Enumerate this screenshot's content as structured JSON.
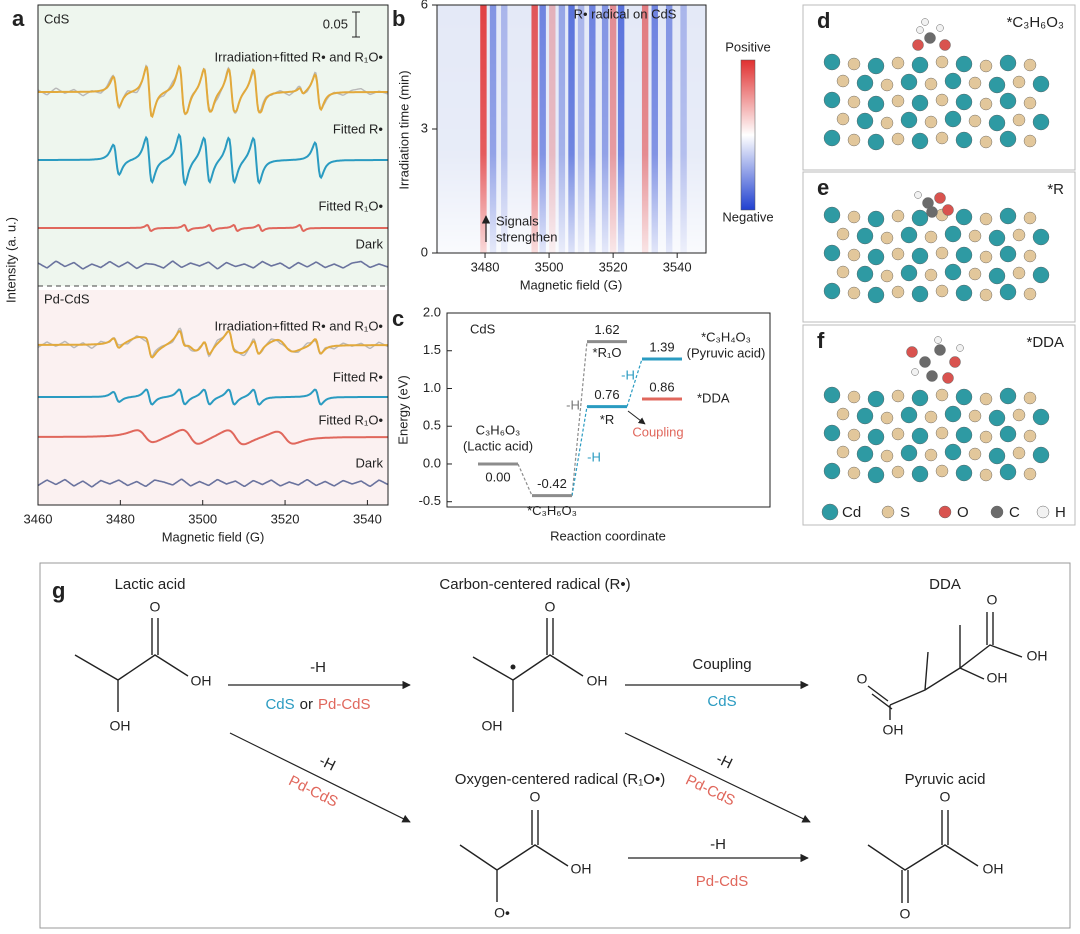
{
  "panel_a": {
    "label": "a",
    "ylabel": "Intensity (a. u.)",
    "xlabel": "Magnetic field (G)",
    "xlim": [
      3460,
      3545
    ],
    "xticks": [
      3460,
      3480,
      3500,
      3520,
      3540
    ],
    "scale_bar": 0.05,
    "colors": {
      "fit": "#e2a93b",
      "experiment": "#b8b8b8",
      "R": "#2a9bc1",
      "R1O": "#e0675c",
      "dark": "#6a739e"
    },
    "groups": [
      {
        "name": "CdS",
        "background": "#eef6ee",
        "trace_labels": [
          "Irradiation+fitted R• and R₁O•",
          "Fitted R•",
          "Fitted R₁O•",
          "Dark"
        ],
        "R": {
          "centers": [
            3479,
            3487,
            3495,
            3501,
            3507,
            3513,
            3528
          ],
          "amplitudes": [
            0.06,
            0.09,
            0.1,
            0.09,
            0.09,
            0.09,
            0.07
          ],
          "width": 1.2
        },
        "R1O": {
          "centers": [
            3487,
            3496,
            3502,
            3508,
            3514,
            3524
          ],
          "amplitudes": [
            0.012,
            0.012,
            0.012,
            0.012,
            0.012,
            0.012
          ],
          "width": 0.8
        },
        "noise": [
          0.004,
          -0.006,
          0.008,
          -0.003,
          0.005,
          -0.008,
          0.002,
          -0.005,
          0.007,
          -0.004,
          0.006,
          -0.007,
          0.003,
          0.001,
          -0.006,
          0.008,
          -0.005,
          0.004,
          -0.002,
          0.006,
          -0.008,
          0.005,
          -0.003,
          0.002,
          -0.006,
          0.007,
          -0.002,
          0.004,
          -0.007,
          0.005,
          -0.004,
          0.006,
          -0.005,
          0.002,
          -0.006,
          0.004,
          0.007,
          -0.005,
          0.002,
          -0.004
        ]
      },
      {
        "name": "Pd-CdS",
        "background": "#fbf1f1",
        "trace_labels": [
          "Irradiation+fitted R• and R₁O•",
          "Fitted R•",
          "Fitted R₁O•",
          "Dark"
        ],
        "R": {
          "centers": [
            3479,
            3487,
            3495,
            3501,
            3507,
            3513,
            3528
          ],
          "amplitudes": [
            0.02,
            0.03,
            0.03,
            0.03,
            0.03,
            0.03,
            0.03
          ],
          "width": 1.2
        },
        "R1O": {
          "centers": [
            3486,
            3497,
            3508,
            3520
          ],
          "amplitudes": [
            0.025,
            0.03,
            0.03,
            0.025
          ],
          "width": 3.5
        },
        "noise": [
          -0.005,
          0.006,
          -0.003,
          0.007,
          -0.006,
          0.004,
          -0.008,
          0.005,
          -0.002,
          0.006,
          -0.005,
          0.003,
          -0.007,
          0.006,
          0.002,
          -0.004,
          0.008,
          -0.006,
          0.003,
          -0.005,
          0.007,
          -0.002,
          0.004,
          -0.007,
          0.005,
          -0.003,
          0.006,
          -0.006,
          0.002,
          -0.004,
          0.007,
          -0.005,
          0.003,
          -0.006,
          0.005,
          -0.002,
          0.004,
          -0.007,
          0.006,
          -0.003
        ]
      }
    ]
  },
  "panel_b": {
    "label": "b",
    "title": "R• radical on CdS",
    "xlabel": "Magnetic field (G)",
    "ylabel": "Irradiation time (min)",
    "xlim": [
      3465,
      3549
    ],
    "xticks": [
      3480,
      3500,
      3520,
      3540
    ],
    "ylim": [
      0,
      6
    ],
    "yticks": [
      0,
      3,
      6
    ],
    "colorbar": [
      "Positive",
      "Negative"
    ],
    "annotation": [
      "Signals",
      "strengthen"
    ],
    "colors": {
      "positive": "#e03030",
      "negative": "#2040d0",
      "background": "#e4e9f7"
    },
    "stripes": {
      "x": [
        3479.5,
        3482.5,
        3486,
        3495.5,
        3498,
        3501,
        3504,
        3507,
        3510,
        3513.5,
        3517.5,
        3520,
        3522.5,
        3530,
        3533,
        3537.5,
        3542
      ],
      "values": [
        0.9,
        -0.5,
        -0.3,
        0.8,
        -0.6,
        0.3,
        -0.4,
        -0.7,
        -0.3,
        -0.6,
        -0.5,
        0.5,
        -0.7,
        0.6,
        -0.6,
        -0.5,
        -0.3
      ]
    }
  },
  "panel_c": {
    "label": "c",
    "system": "CdS",
    "ylabel": "Energy (eV)",
    "xlabel": "Reaction coordinate",
    "ylim": [
      -0.57,
      2.0
    ],
    "yticks": [
      -0.5,
      {
        "value": 0,
        "label": "0.0"
      },
      0.5,
      {
        "value": 1,
        "label": "1.0"
      },
      1.5,
      {
        "value": 2,
        "label": "2.0"
      }
    ],
    "states": [
      [
        "C₃H₆O₃",
        "(Lactic acid)"
      ],
      [
        "*C₃H₆O₃"
      ],
      [
        "*R₁O"
      ],
      [
        "*R"
      ],
      [
        "*C₃H₄O₃",
        "(Pyruvic acid)"
      ],
      [
        "*DDA"
      ]
    ],
    "values": [
      0,
      -0.42,
      1.62,
      0.76,
      1.39,
      0.86
    ],
    "value_labels": [
      "0.00",
      "-0.42",
      "1.62",
      "0.76",
      "1.39",
      "0.86"
    ],
    "colors": [
      "#8c8c8c",
      "#8c8c8c",
      "#8c8c8c",
      "#2a9bc1",
      "#2a9bc1",
      "#e0675c"
    ],
    "steps": [
      {
        "label": "-H",
        "color": "#777777"
      },
      {
        "label": "-H",
        "color": "#2a9bc1"
      },
      {
        "label": "-H",
        "color": "#2a9bc1"
      },
      {
        "label": "Coupling",
        "color": "#e0675c"
      }
    ]
  },
  "panels_def": {
    "labels": [
      "d",
      "e",
      "f"
    ],
    "adsorbates": [
      "*C₃H₆O₃",
      "*R",
      "*DDA"
    ],
    "legend": [
      {
        "name": "Cd",
        "color": "#2e9aa3"
      },
      {
        "name": "S",
        "color": "#e2c79b"
      },
      {
        "name": "O",
        "color": "#d9534f"
      },
      {
        "name": "C",
        "color": "#6b6b6b"
      },
      {
        "name": "H",
        "color": "#f2f2f2"
      }
    ]
  },
  "scheme": {
    "label": "g",
    "molecules": [
      {
        "name": "Lactic acid",
        "atoms": [
          "O",
          "OH",
          "OH"
        ]
      },
      {
        "name": "Carbon-centered radical (R•)",
        "atoms": [
          "O",
          "OH",
          "OH"
        ]
      },
      {
        "name": "DDA",
        "atoms": [
          "O",
          "OH",
          "OH",
          "O",
          "OH"
        ]
      },
      {
        "name": "Oxygen-centered radical (R₁O•)",
        "atoms": [
          "O",
          "OH",
          "O•"
        ]
      },
      {
        "name": "Pyruvic acid",
        "atoms": [
          "O",
          "OH",
          "O"
        ]
      }
    ],
    "arrows": [
      {
        "above": "-H",
        "below": [
          {
            "text": "CdS",
            "color": "#2a9bc1"
          },
          {
            "text": "or",
            "color": "#222222"
          },
          {
            "text": "Pd-CdS",
            "color": "#e0675c"
          }
        ]
      },
      {
        "above": "Coupling",
        "below": [
          {
            "text": "CdS",
            "color": "#2a9bc1"
          }
        ]
      },
      {
        "above": "-H",
        "below": [
          {
            "text": "Pd-CdS",
            "color": "#e0675c"
          }
        ]
      },
      {
        "above": "-H",
        "below": [
          {
            "text": "Pd-CdS",
            "color": "#e0675c"
          }
        ]
      },
      {
        "above": "-H",
        "below": [
          {
            "text": "Pd-CdS",
            "color": "#e0675c"
          }
        ]
      }
    ]
  }
}
